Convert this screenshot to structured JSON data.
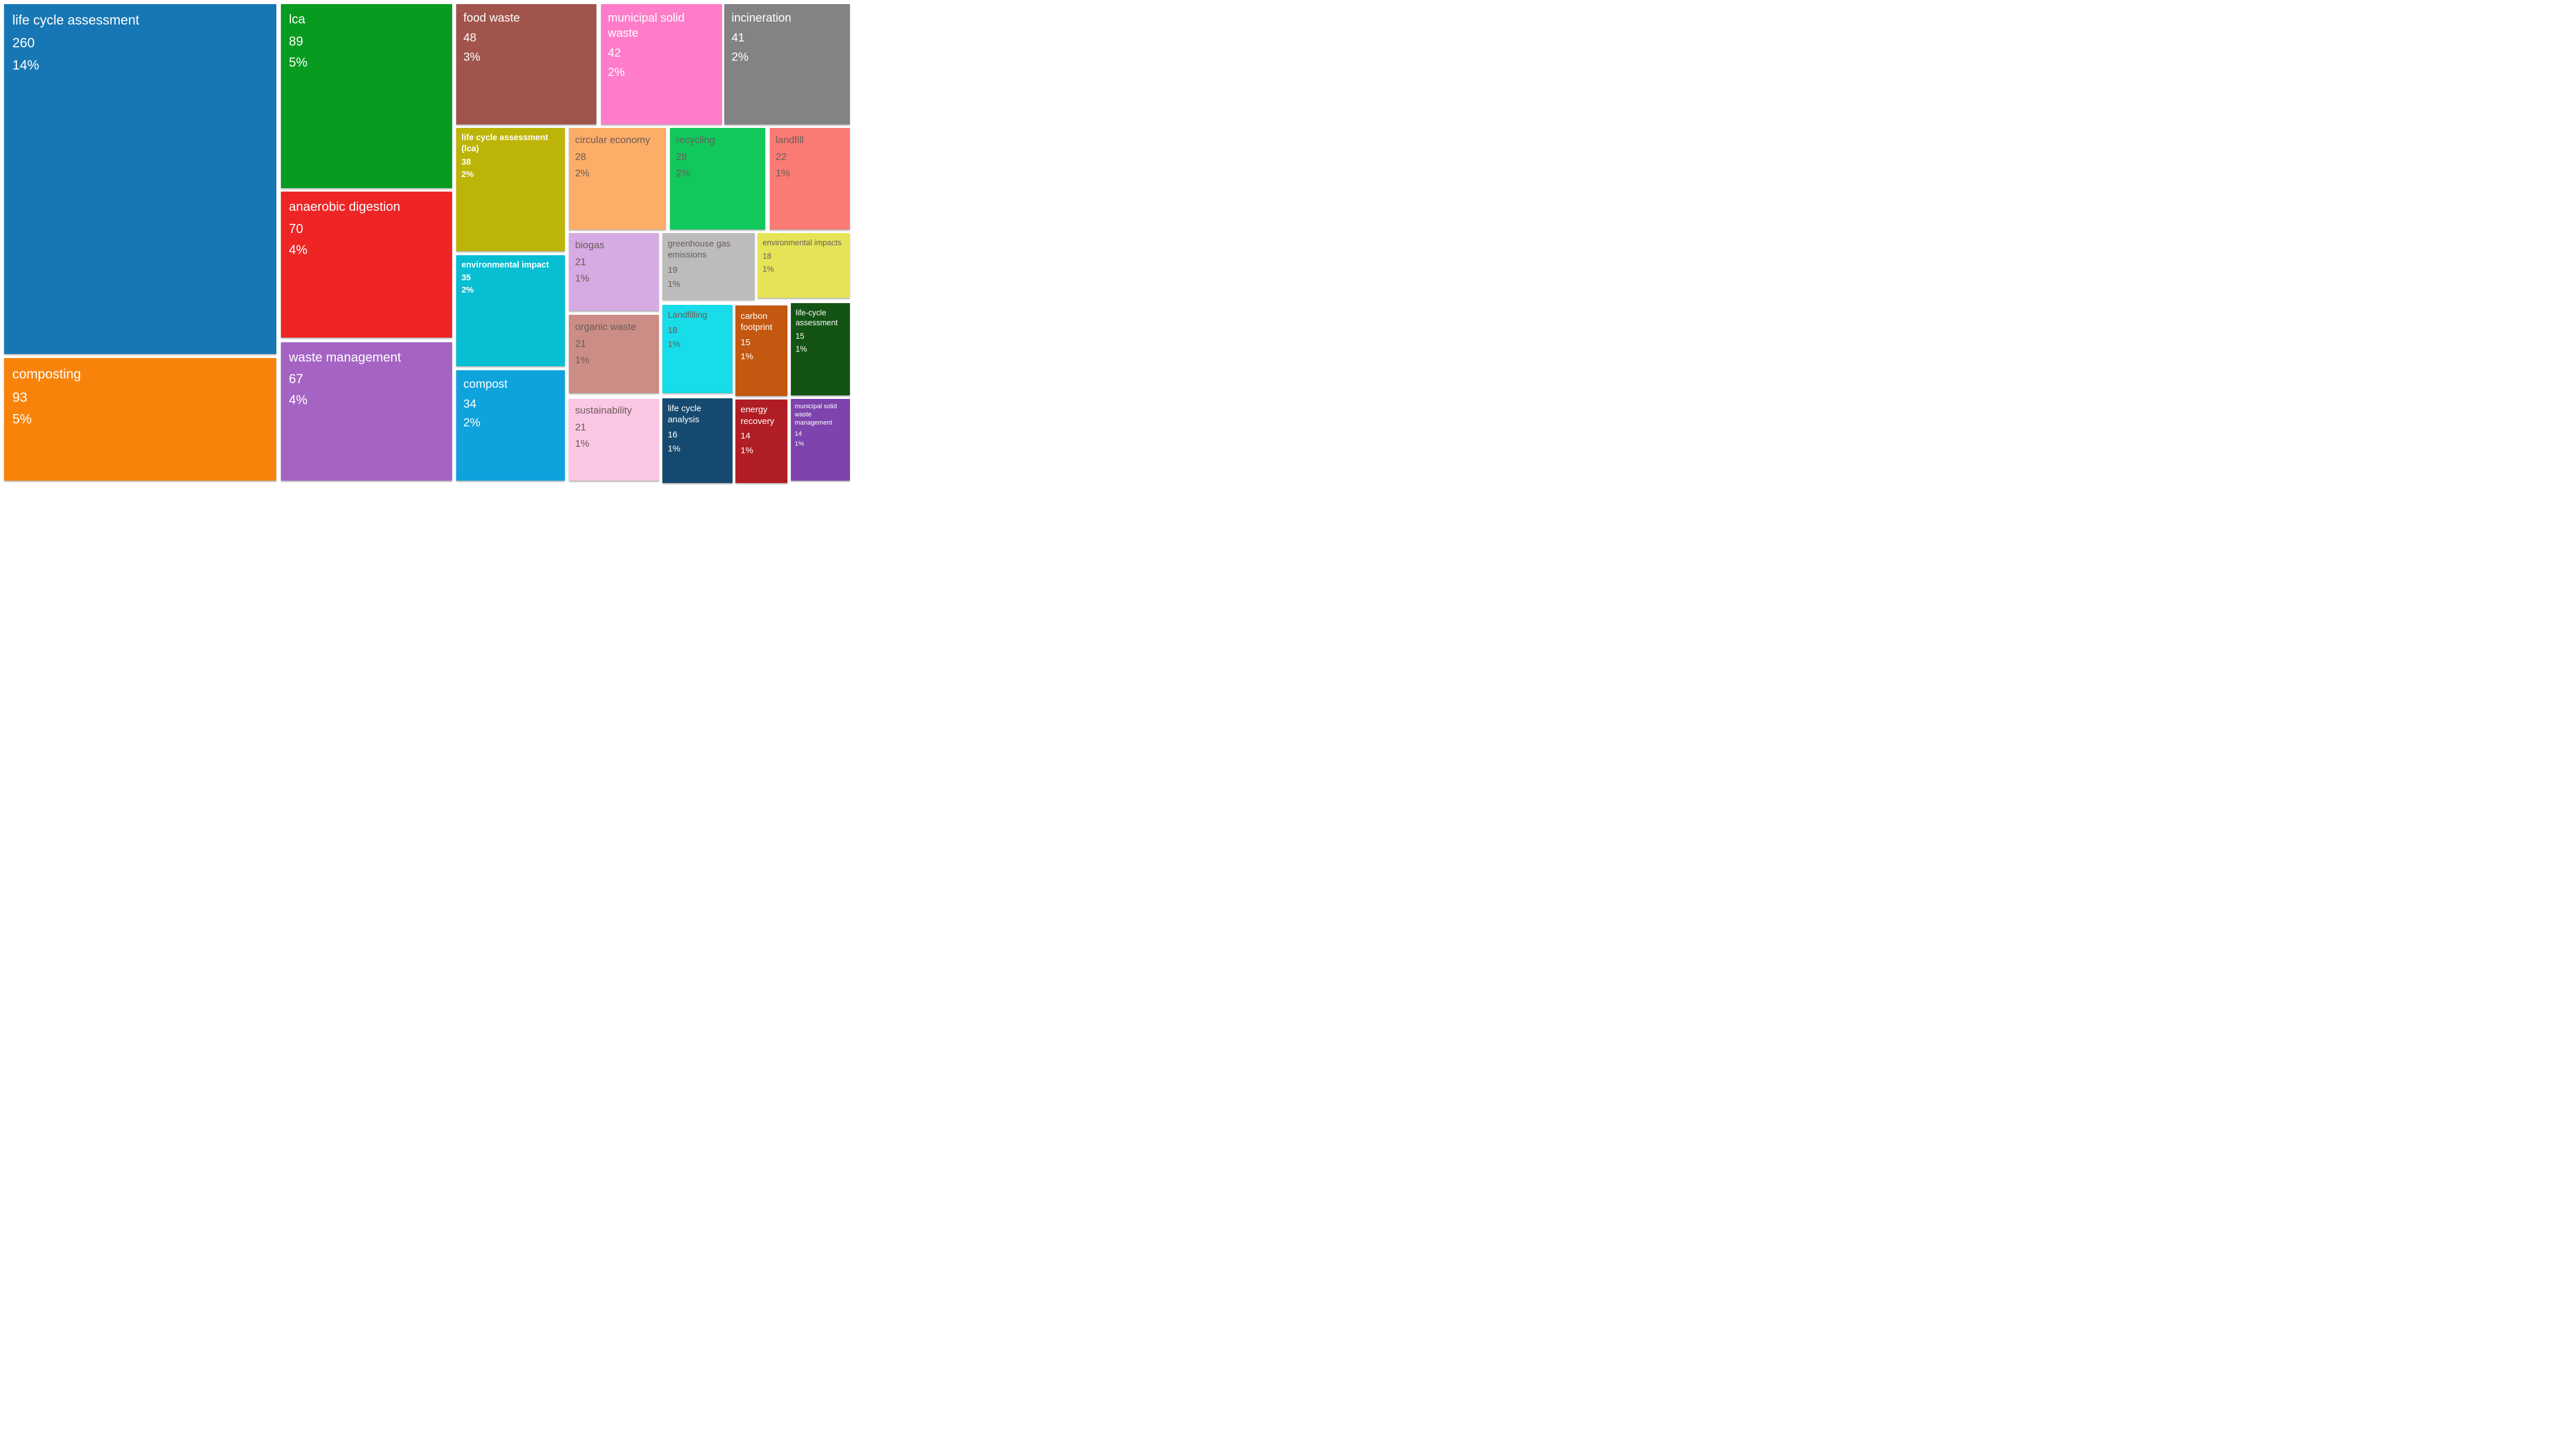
{
  "chart_data": {
    "type": "treemap",
    "title": "",
    "legend_position": "none",
    "grid": false,
    "tile_line_order": [
      "label",
      "value",
      "percent"
    ],
    "text_colors": {
      "light": "#ffffff",
      "dark": "#6a5c58"
    },
    "tiles": [
      {
        "label": "life cycle assessment",
        "value": 260,
        "percent": "14%",
        "color": "#1777b4",
        "text": "light",
        "bold": false,
        "size": "xl",
        "rect": {
          "x": 0.5,
          "y": 0.88,
          "w": 31.83,
          "h": 72.04
        }
      },
      {
        "label": "composting",
        "value": 93,
        "percent": "5%",
        "color": "#f8830b",
        "text": "light",
        "bold": false,
        "size": "xl",
        "rect": {
          "x": 0.5,
          "y": 73.81,
          "w": 31.83,
          "h": 25.27
        }
      },
      {
        "label": "lca",
        "value": 89,
        "percent": "5%",
        "color": "#089b1f",
        "text": "light",
        "bold": false,
        "size": "lg",
        "rect": {
          "x": 32.92,
          "y": 0.88,
          "w": 20.02,
          "h": 37.83
        }
      },
      {
        "label": "anaerobic digestion",
        "value": 70,
        "percent": "4%",
        "color": "#ee2425",
        "text": "light",
        "bold": false,
        "size": "lg",
        "rect": {
          "x": 32.92,
          "y": 39.51,
          "w": 20.02,
          "h": 30.08
        }
      },
      {
        "label": "waste management",
        "value": 67,
        "percent": "4%",
        "color": "#a564c4",
        "text": "light",
        "bold": false,
        "size": "lg",
        "rect": {
          "x": 32.92,
          "y": 70.48,
          "w": 20.02,
          "h": 28.6
        }
      },
      {
        "label": "food waste",
        "value": 48,
        "percent": "3%",
        "color": "#a1544c",
        "text": "light",
        "bold": false,
        "size": "md",
        "rect": {
          "x": 53.44,
          "y": 0.88,
          "w": 16.39,
          "h": 24.79
        }
      },
      {
        "label": "municipal solid waste",
        "value": 42,
        "percent": "2%",
        "color": "#fe7cc9",
        "text": "light",
        "bold": false,
        "size": "md",
        "rect": {
          "x": 70.36,
          "y": 0.88,
          "w": 14.16,
          "h": 24.79
        }
      },
      {
        "label": "incineration",
        "value": 41,
        "percent": "2%",
        "color": "#838385",
        "text": "light",
        "bold": false,
        "size": "md",
        "rect": {
          "x": 84.84,
          "y": 0.88,
          "w": 14.66,
          "h": 24.79
        }
      },
      {
        "label": "life cycle assessment (lca)",
        "value": 38,
        "percent": "2%",
        "color": "#bdb408",
        "text": "light",
        "bold": true,
        "size": "bmd",
        "rect": {
          "x": 53.44,
          "y": 26.39,
          "w": 12.7,
          "h": 25.35
        }
      },
      {
        "label": "environmental impact",
        "value": 35,
        "percent": "2%",
        "color": "#07bed2",
        "text": "light",
        "bold": true,
        "size": "bmd",
        "rect": {
          "x": 53.44,
          "y": 52.55,
          "w": 12.7,
          "h": 22.86
        }
      },
      {
        "label": "compost",
        "value": 34,
        "percent": "2%",
        "color": "#0fa3dd",
        "text": "light",
        "bold": false,
        "size": "md",
        "rect": {
          "x": 53.44,
          "y": 76.29,
          "w": 12.7,
          "h": 22.78
        }
      },
      {
        "label": "circular economy",
        "value": 28,
        "percent": "2%",
        "color": "#fcad67",
        "text": "dark",
        "bold": false,
        "size": "sm",
        "rect": {
          "x": 66.64,
          "y": 26.39,
          "w": 11.31,
          "h": 20.94
        }
      },
      {
        "label": "recycling",
        "value": 28,
        "percent": "2%",
        "color": "#11c85c",
        "text": "dark",
        "bold": false,
        "size": "sm",
        "rect": {
          "x": 78.45,
          "y": 26.39,
          "w": 11.15,
          "h": 20.94
        }
      },
      {
        "label": "landfill",
        "value": 22,
        "percent": "1%",
        "color": "#fa7b74",
        "text": "dark",
        "bold": false,
        "size": "sm",
        "rect": {
          "x": 90.13,
          "y": 26.39,
          "w": 9.37,
          "h": 20.94
        }
      },
      {
        "label": "biogas",
        "value": 21,
        "percent": "1%",
        "color": "#d8aae3",
        "text": "dark",
        "bold": false,
        "size": "sm",
        "rect": {
          "x": 66.64,
          "y": 48.05,
          "w": 10.53,
          "h": 15.96
        }
      },
      {
        "label": "greenhouse gas emissions",
        "value": 19,
        "percent": "1%",
        "color": "#bcbcbe",
        "text": "dark",
        "bold": false,
        "size": "xs",
        "rect": {
          "x": 77.57,
          "y": 48.05,
          "w": 10.78,
          "h": 13.72
        }
      },
      {
        "label": "environmental impacts",
        "value": 18,
        "percent": "1%",
        "color": "#e5e458",
        "text": "dark",
        "bold": false,
        "size": "xxs",
        "rect": {
          "x": 88.74,
          "y": 48.05,
          "w": 10.76,
          "h": 13.32
        }
      },
      {
        "label": "organic waste",
        "value": 21,
        "percent": "1%",
        "color": "#cb8d85",
        "text": "dark",
        "bold": false,
        "size": "sm",
        "rect": {
          "x": 66.64,
          "y": 64.9,
          "w": 10.53,
          "h": 16.13
        }
      },
      {
        "label": "Landfilling",
        "value": 18,
        "percent": "1%",
        "color": "#17dce9",
        "text": "dark",
        "bold": false,
        "size": "xs",
        "rect": {
          "x": 77.57,
          "y": 62.78,
          "w": 8.23,
          "h": 18.25
        }
      },
      {
        "label": "carbon footprint",
        "value": 15,
        "percent": "1%",
        "color": "#c45810",
        "text": "light",
        "bold": false,
        "size": "xs",
        "rect": {
          "x": 86.11,
          "y": 62.98,
          "w": 6.06,
          "h": 18.65
        }
      },
      {
        "label": "life-cycle assessment",
        "value": 15,
        "percent": "1%",
        "color": "#135313",
        "text": "light",
        "bold": false,
        "size": "xxs",
        "rect": {
          "x": 92.61,
          "y": 62.49,
          "w": 6.89,
          "h": 18.93
        }
      },
      {
        "label": "sustainability",
        "value": 21,
        "percent": "1%",
        "color": "#fcc6e5",
        "text": "dark",
        "bold": false,
        "size": "sm",
        "rect": {
          "x": 66.64,
          "y": 82.15,
          "w": 10.53,
          "h": 16.93
        }
      },
      {
        "label": "life cycle analysis",
        "value": 16,
        "percent": "1%",
        "color": "#16496f",
        "text": "light",
        "bold": false,
        "size": "xs",
        "rect": {
          "x": 77.57,
          "y": 82.03,
          "w": 8.23,
          "h": 17.45
        }
      },
      {
        "label": "energy recovery",
        "value": 14,
        "percent": "1%",
        "color": "#b11d24",
        "text": "light",
        "bold": false,
        "size": "xs",
        "rect": {
          "x": 86.11,
          "y": 82.31,
          "w": 6.06,
          "h": 17.17
        }
      },
      {
        "label": "municipal solid waste management",
        "value": 14,
        "percent": "1%",
        "color": "#7e43ac",
        "text": "light",
        "bold": false,
        "size": "tiny",
        "rect": {
          "x": 92.61,
          "y": 82.15,
          "w": 6.89,
          "h": 16.93
        }
      }
    ]
  }
}
